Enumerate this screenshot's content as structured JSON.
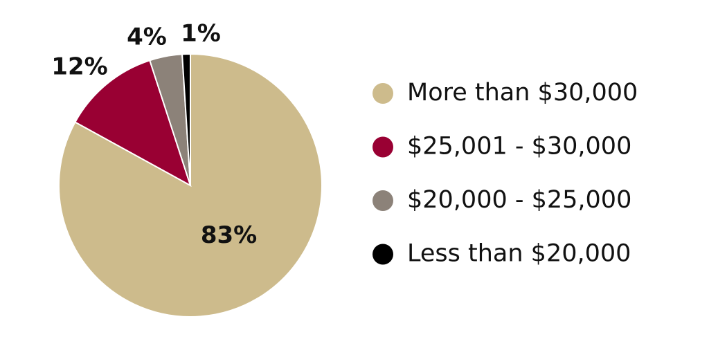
{
  "chart_data": {
    "type": "pie",
    "categories": [
      "More than $30,000",
      "$25,001 - $30,000",
      "$20,000 - $25,000",
      "Less than $20,000"
    ],
    "values": [
      83,
      12,
      4,
      1
    ],
    "value_labels": [
      "83%",
      "12%",
      "4%",
      "1%"
    ],
    "colors": [
      "#cdbb8c",
      "#990033",
      "#8c8279",
      "#000000"
    ]
  }
}
